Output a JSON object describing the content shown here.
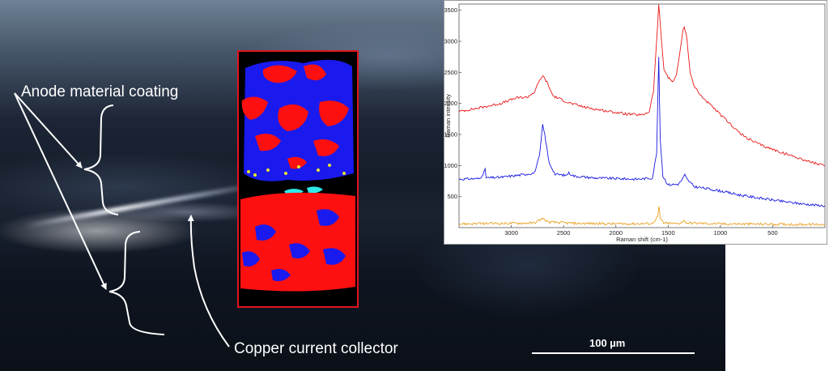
{
  "figure": {
    "labels": {
      "anode_coating": "Anode material coating",
      "copper_collector": "Copper current collector",
      "scale_bar": "100 µm"
    }
  },
  "colors": {
    "map_red": "#ff1010",
    "map_blue": "#1a1aee",
    "map_cyan": "#30e8e8",
    "map_yellow": "#e8e830",
    "map_border": "#e0141e"
  },
  "chart_data": {
    "type": "line",
    "title": "",
    "xlabel": "Raman shift (cm-1)",
    "ylabel": "Raman intensity",
    "xlim": [
      3500,
      0
    ],
    "ylim": [
      0,
      3600
    ],
    "xticks": [
      3000,
      2500,
      2000,
      1500,
      1000,
      500
    ],
    "xtick_labels": [
      "3000",
      "2500",
      "2000",
      "1500",
      "1000",
      "500"
    ],
    "yticks": [
      500,
      1000,
      1500,
      2000,
      2500,
      3000,
      3500
    ],
    "ytick_labels": [
      "500",
      "1000",
      "1500",
      "2000",
      "2500",
      "3000",
      "3500"
    ],
    "series": [
      {
        "name": "red",
        "color": "#e81818",
        "points": [
          [
            3500,
            1870
          ],
          [
            3300,
            1930
          ],
          [
            3100,
            2000
          ],
          [
            2950,
            2090
          ],
          [
            2850,
            2100
          ],
          [
            2780,
            2180
          ],
          [
            2740,
            2330
          ],
          [
            2700,
            2450
          ],
          [
            2660,
            2340
          ],
          [
            2600,
            2120
          ],
          [
            2450,
            2010
          ],
          [
            2300,
            1940
          ],
          [
            2100,
            1880
          ],
          [
            1900,
            1830
          ],
          [
            1750,
            1810
          ],
          [
            1680,
            1870
          ],
          [
            1640,
            2200
          ],
          [
            1610,
            3000
          ],
          [
            1590,
            3600
          ],
          [
            1570,
            3150
          ],
          [
            1540,
            2550
          ],
          [
            1500,
            2420
          ],
          [
            1460,
            2350
          ],
          [
            1420,
            2450
          ],
          [
            1390,
            2800
          ],
          [
            1360,
            3150
          ],
          [
            1345,
            3240
          ],
          [
            1320,
            3050
          ],
          [
            1290,
            2500
          ],
          [
            1250,
            2280
          ],
          [
            1200,
            2150
          ],
          [
            1100,
            1980
          ],
          [
            1000,
            1820
          ],
          [
            900,
            1660
          ],
          [
            800,
            1500
          ],
          [
            700,
            1400
          ],
          [
            600,
            1320
          ],
          [
            500,
            1260
          ],
          [
            400,
            1200
          ],
          [
            300,
            1150
          ],
          [
            200,
            1090
          ],
          [
            100,
            1040
          ],
          [
            0,
            990
          ]
        ]
      },
      {
        "name": "blue",
        "color": "#1818e0",
        "points": [
          [
            3500,
            780
          ],
          [
            3300,
            790
          ],
          [
            3250,
            930
          ],
          [
            3240,
            800
          ],
          [
            3100,
            810
          ],
          [
            2900,
            850
          ],
          [
            2780,
            880
          ],
          [
            2730,
            1150
          ],
          [
            2700,
            1650
          ],
          [
            2680,
            1500
          ],
          [
            2640,
            1050
          ],
          [
            2580,
            860
          ],
          [
            2480,
            840
          ],
          [
            2450,
            880
          ],
          [
            2400,
            830
          ],
          [
            2200,
            800
          ],
          [
            2000,
            790
          ],
          [
            1800,
            780
          ],
          [
            1650,
            800
          ],
          [
            1610,
            1200
          ],
          [
            1590,
            2750
          ],
          [
            1575,
            1400
          ],
          [
            1550,
            830
          ],
          [
            1500,
            690
          ],
          [
            1400,
            700
          ],
          [
            1360,
            790
          ],
          [
            1340,
            850
          ],
          [
            1320,
            780
          ],
          [
            1250,
            660
          ],
          [
            1100,
            620
          ],
          [
            1000,
            590
          ],
          [
            800,
            520
          ],
          [
            600,
            470
          ],
          [
            400,
            420
          ],
          [
            200,
            380
          ],
          [
            0,
            350
          ]
        ]
      },
      {
        "name": "orange",
        "color": "#e8a020",
        "points": [
          [
            3500,
            60
          ],
          [
            3000,
            70
          ],
          [
            2780,
            75
          ],
          [
            2700,
            150
          ],
          [
            2650,
            90
          ],
          [
            2400,
            70
          ],
          [
            2000,
            60
          ],
          [
            1650,
            65
          ],
          [
            1600,
            180
          ],
          [
            1588,
            330
          ],
          [
            1575,
            140
          ],
          [
            1540,
            70
          ],
          [
            1400,
            65
          ],
          [
            1350,
            110
          ],
          [
            1320,
            75
          ],
          [
            1000,
            60
          ],
          [
            500,
            55
          ],
          [
            0,
            50
          ]
        ]
      }
    ]
  }
}
